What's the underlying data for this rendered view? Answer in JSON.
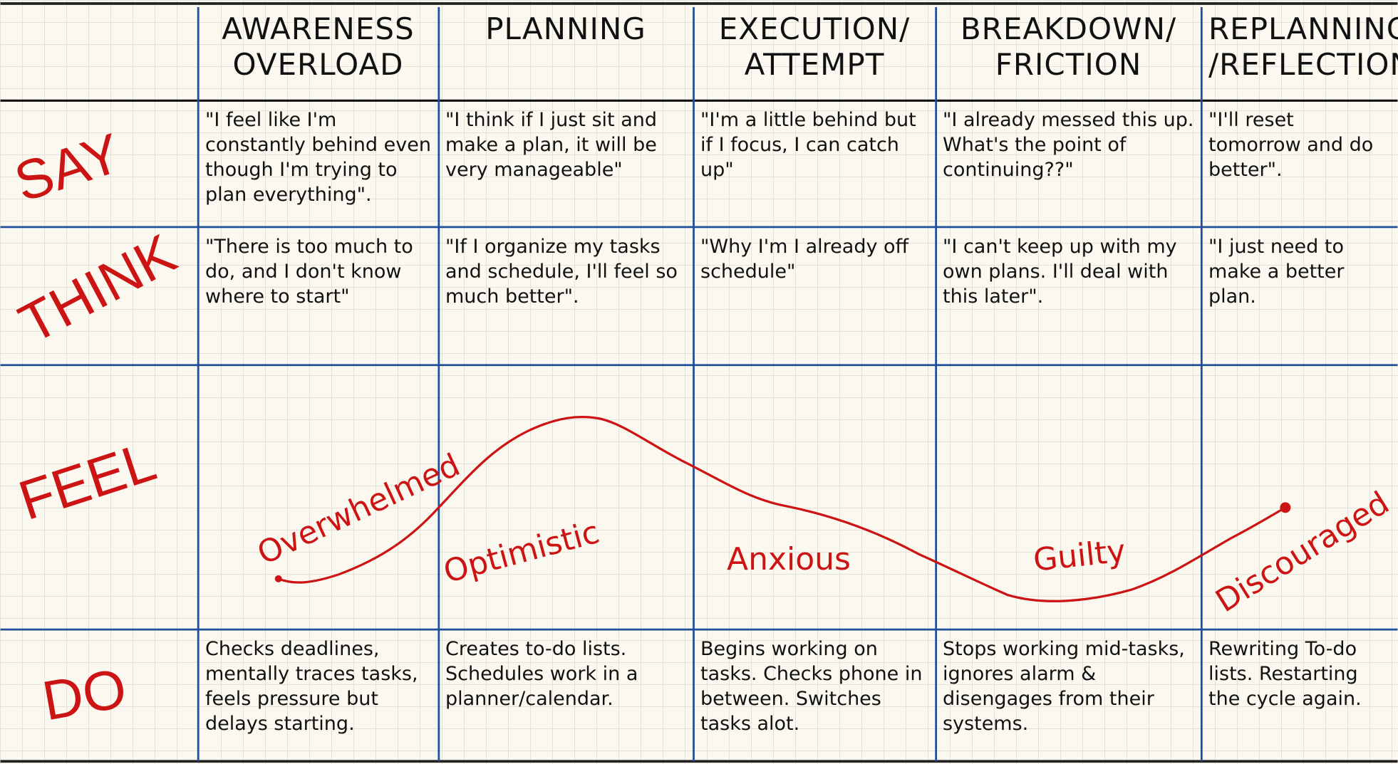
{
  "stages": [
    {
      "title": "AWARENESS OVERLOAD",
      "say": "\"I feel like I'm constantly behind even though I'm trying to plan everything\".",
      "think": "\"There is too much to do, and I don't know where to start\"",
      "feel": "Overwhelmed",
      "do": "Checks deadlines, mentally traces tasks, feels pressure but delays starting."
    },
    {
      "title": "PLANNING",
      "say": "\"I think if I just sit and make a plan, it will be very manageable\"",
      "think": "\"If I organize my tasks and schedule, I'll feel so much better\".",
      "feel": "Optimistic",
      "do": "Creates to-do lists. Schedules work in a planner/calendar."
    },
    {
      "title": "EXECUTION/ ATTEMPT",
      "say": "\"I'm a little behind but if I focus, I can catch up\"",
      "think": "\"Why I'm I already off schedule\"",
      "feel": "Anxious",
      "do": "Begins working on tasks. Checks phone in between. Switches tasks alot."
    },
    {
      "title": "BREAKDOWN/ FRICTION",
      "say": "\"I already messed this up. What's the point of continuing??\"",
      "think": "\"I can't keep up with my own plans. I'll deal with this later\".",
      "feel": "Guilty",
      "do": "Stops working mid-tasks, ignores alarm & disengages from their systems."
    },
    {
      "title": "REPLANNING /REFLECTION",
      "say": "\"I'll reset tomorrow and do better\".",
      "think": "\"I just need to make a better plan.",
      "feel": "Discouraged",
      "do": "Rewriting To-do lists. Restarting the cycle again."
    }
  ],
  "row_labels": {
    "say": "SAY",
    "think": "THINK",
    "feel": "FEEL",
    "do": "DO"
  }
}
